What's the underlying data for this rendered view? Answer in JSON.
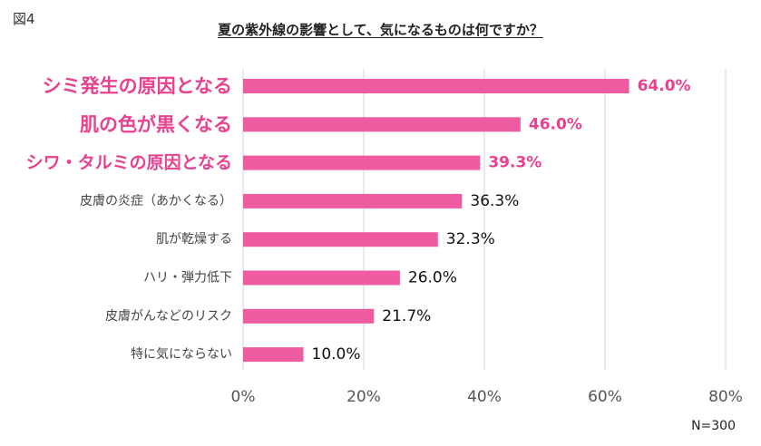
{
  "figure_label": "図4",
  "note": "N=300",
  "colors": {
    "bar": "#EE5BA0",
    "highlight_text": "#E8418F",
    "grid": "#D4D4D4",
    "label": "#444444",
    "value": "#111111"
  },
  "chart_data": {
    "type": "bar",
    "orientation": "horizontal",
    "title": "夏の紫外線の影響として、気になるものは何ですか？",
    "categories": [
      "シミ発生の原因となる",
      "肌の色が黒くなる",
      "シワ・タルミの原因となる",
      "皮膚の炎症（あかくなる）",
      "肌が乾燥する",
      "ハリ・弾力低下",
      "皮膚がんなどのリスク",
      "特に気にならない"
    ],
    "values": [
      64.0,
      46.0,
      39.3,
      36.3,
      32.3,
      26.0,
      21.7,
      10.0
    ],
    "value_labels": [
      "64.0%",
      "46.0%",
      "39.3%",
      "36.3%",
      "32.3%",
      "26.0%",
      "21.7%",
      "10.0%"
    ],
    "highlighted": [
      0,
      1,
      2
    ],
    "xlim": [
      0,
      80
    ],
    "xticks": [
      0,
      20,
      40,
      60,
      80
    ],
    "xtick_labels": [
      "0%",
      "20%",
      "40%",
      "60%",
      "80%"
    ],
    "grid": true,
    "legend": "none"
  }
}
